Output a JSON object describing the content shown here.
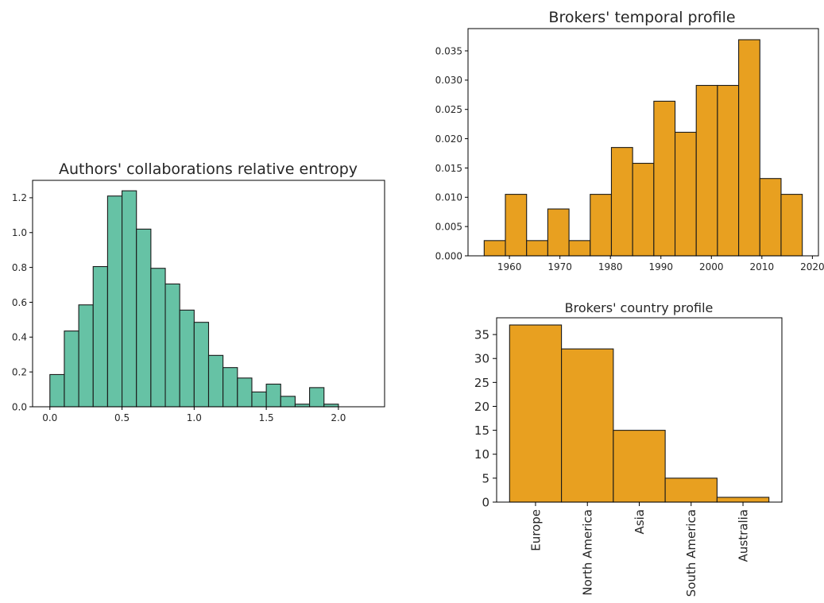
{
  "colors": {
    "entropy_bar": "#66c2a5",
    "broker_bar": "#e8a020",
    "bar_edge": "#1a1a1a",
    "axis": "#000000"
  },
  "chart_data": [
    {
      "id": "entropy",
      "type": "bar",
      "title": "Authors' collaborations relative entropy",
      "xlabel": "",
      "ylabel": "",
      "bin_edges": [
        0.0,
        0.1,
        0.2,
        0.3,
        0.4,
        0.5,
        0.6,
        0.7,
        0.8,
        0.9,
        1.0,
        1.1,
        1.2,
        1.3,
        1.4,
        1.5,
        1.6,
        1.7,
        1.8,
        1.9,
        2.0,
        2.1,
        2.2
      ],
      "values": [
        0.185,
        0.435,
        0.585,
        0.805,
        1.21,
        1.24,
        1.02,
        0.795,
        0.705,
        0.555,
        0.485,
        0.295,
        0.225,
        0.165,
        0.085,
        0.13,
        0.06,
        0.015,
        0.11,
        0.015,
        0,
        0
      ],
      "xlim": [
        -0.12,
        2.32
      ],
      "ylim": [
        0,
        1.3
      ],
      "xticks": [
        0.0,
        0.5,
        1.0,
        1.5,
        2.0
      ],
      "xtick_labels": [
        "0.0",
        "0.5",
        "1.0",
        "1.5",
        "2.0"
      ],
      "yticks": [
        0.0,
        0.2,
        0.4,
        0.6,
        0.8,
        1.0,
        1.2
      ],
      "ytick_labels": [
        "0.0",
        "0.2",
        "0.4",
        "0.6",
        "0.8",
        "1.0",
        "1.2"
      ],
      "grid": false
    },
    {
      "id": "temporal",
      "type": "bar",
      "title": "Brokers' temporal profile",
      "xlabel": "",
      "ylabel": "",
      "bin_edges": [
        1955,
        1959.2,
        1963.4,
        1967.6,
        1971.8,
        1976,
        1980.2,
        1984.4,
        1988.6,
        1992.8,
        1997,
        2001.2,
        2005.4,
        2009.6,
        2013.8,
        2018
      ],
      "values": [
        0.0026,
        0.0105,
        0.0026,
        0.008,
        0.0026,
        0.0105,
        0.0185,
        0.0158,
        0.0264,
        0.0211,
        0.0291,
        0.0291,
        0.0369,
        0.0132,
        0.0105
      ],
      "xlim": [
        1951.8,
        2021.2
      ],
      "ylim": [
        0,
        0.0388
      ],
      "xticks": [
        1960,
        1970,
        1980,
        1990,
        2000,
        2010,
        2020
      ],
      "xtick_labels": [
        "1960",
        "1970",
        "1980",
        "1990",
        "2000",
        "2010",
        "2020"
      ],
      "yticks": [
        0.0,
        0.005,
        0.01,
        0.015,
        0.02,
        0.025,
        0.03,
        0.035
      ],
      "ytick_labels": [
        "0.000",
        "0.005",
        "0.010",
        "0.015",
        "0.020",
        "0.025",
        "0.030",
        "0.035"
      ],
      "grid": false
    },
    {
      "id": "country",
      "type": "bar",
      "title": "Brokers' country profile",
      "xlabel": "",
      "ylabel": "",
      "categories": [
        "Europe",
        "North America",
        "Asia",
        "South America",
        "Australia"
      ],
      "values": [
        37,
        32,
        15,
        5,
        1
      ],
      "ylim": [
        0,
        38.5
      ],
      "yticks": [
        0,
        5,
        10,
        15,
        20,
        25,
        30,
        35
      ],
      "ytick_labels": [
        "0",
        "5",
        "10",
        "15",
        "20",
        "25",
        "30",
        "35"
      ],
      "grid": false
    }
  ]
}
